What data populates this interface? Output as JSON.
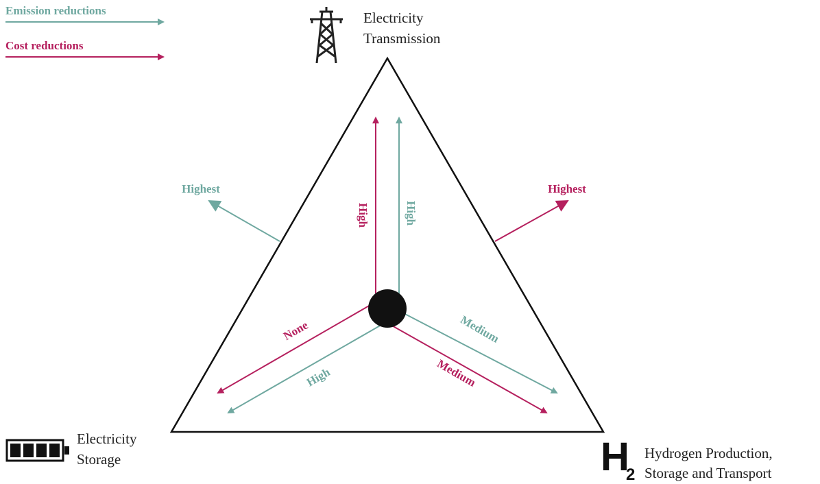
{
  "legend": [
    {
      "label": "Emission reductions"
    },
    {
      "label": "Cost reductions"
    }
  ],
  "vertices": {
    "top": {
      "lines": [
        "Electricity",
        "Transmission"
      ]
    },
    "left": {
      "lines": [
        "Electricity",
        "Storage"
      ]
    },
    "right": {
      "icon": "H",
      "icon_sub": "2",
      "lines": [
        "Hydrogen Production,",
        "Storage and Transport"
      ]
    }
  },
  "arrows": {
    "up_cost": "High",
    "up_emission": "High",
    "left_cost": "None",
    "left_emission": "High",
    "right_emission": "Medium",
    "right_cost": "Medium",
    "outer_emission": "Highest",
    "outer_cost": "Highest"
  }
}
